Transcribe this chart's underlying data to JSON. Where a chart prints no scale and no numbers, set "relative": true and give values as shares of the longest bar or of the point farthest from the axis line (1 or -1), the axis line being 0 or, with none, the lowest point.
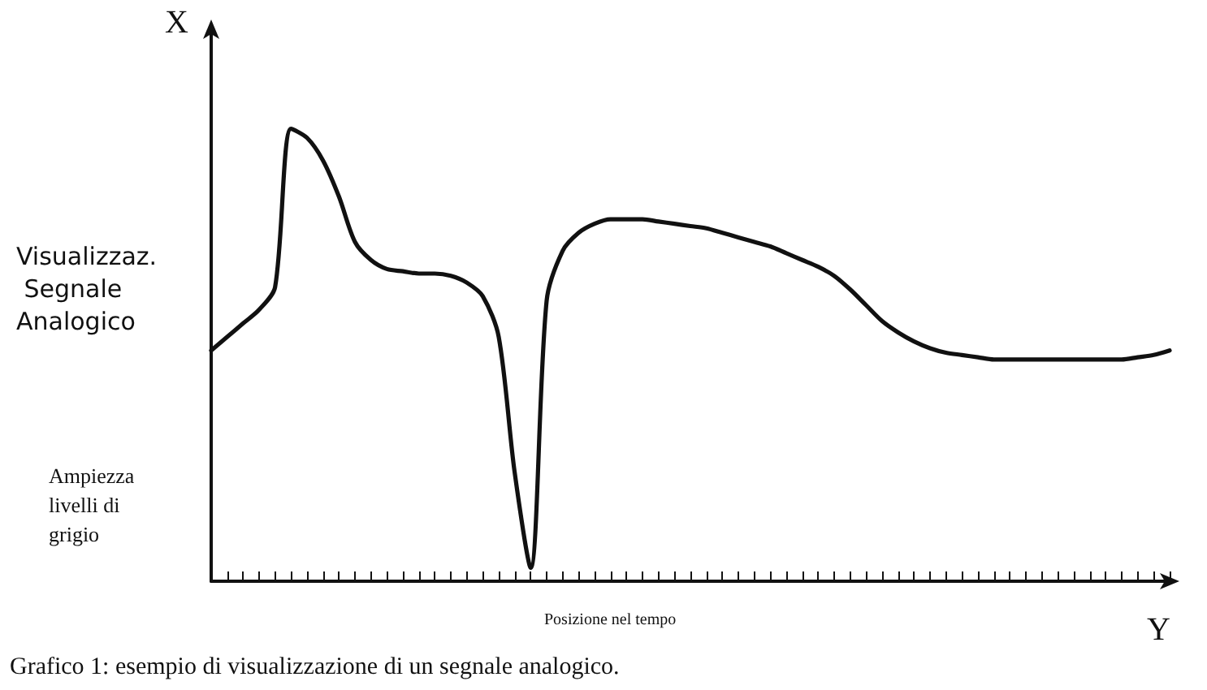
{
  "chart_data": {
    "type": "line",
    "relative": true,
    "xlabel": "Y",
    "ylabel": "X",
    "annotations": [
      "Visualizzaz. Segnale Analogico",
      "Ampiezza livelli di grigio",
      "Posizione nel tempo",
      "Grafico 1: esempio di visualizzazione di un segnale analogico."
    ],
    "categories": [
      null,
      null,
      null,
      null,
      null,
      null,
      null,
      null,
      null,
      null,
      null,
      null,
      null,
      null,
      null,
      null,
      null,
      null,
      null,
      null,
      null,
      null,
      null,
      null,
      null,
      null,
      null,
      null,
      null,
      null,
      null,
      null,
      null,
      null,
      null,
      null,
      null,
      null,
      null,
      null,
      null,
      null,
      null,
      null,
      null,
      null,
      null,
      null,
      null,
      null,
      null,
      null,
      null,
      null,
      null,
      null,
      null,
      null,
      null,
      null,
      null
    ],
    "series": [
      {
        "color": "#111111",
        "values": [
          0.51,
          0.54,
          0.57,
          0.6,
          0.65,
          1.0,
          0.98,
          0.93,
          0.85,
          0.75,
          0.71,
          0.69,
          0.685,
          0.68,
          0.68,
          0.675,
          0.66,
          0.63,
          0.54,
          0.24,
          0.03,
          0.62,
          0.73,
          0.77,
          0.79,
          0.8,
          0.8,
          0.8,
          0.795,
          0.79,
          0.785,
          0.78,
          0.77,
          0.76,
          0.75,
          0.74,
          0.725,
          0.71,
          0.695,
          0.675,
          0.645,
          0.61,
          0.575,
          0.55,
          0.53,
          0.515,
          0.505,
          0.5,
          0.495,
          0.49,
          0.49,
          0.49,
          0.49,
          0.49,
          0.49,
          0.49,
          0.49,
          0.49,
          0.495,
          0.5,
          0.51
        ]
      }
    ],
    "marker": "none",
    "line_style": "solid",
    "grid": false
  }
}
